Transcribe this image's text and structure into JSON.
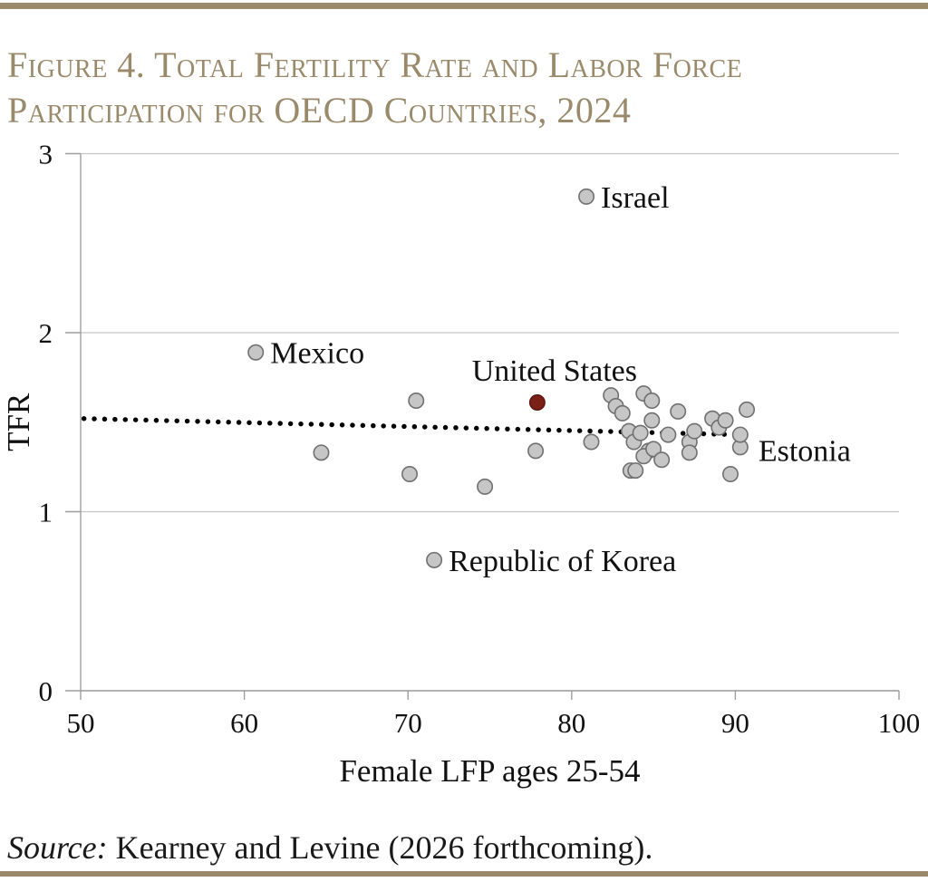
{
  "page": {
    "accent_color": "#9a8a6b",
    "title_line1": "Figure 4. Total Fertility Rate and Labor Force",
    "title_line2": "Participation for OECD Countries, 2024",
    "source_label": "Source:",
    "source_rest": " Kearney and Levine (2026 forthcoming)."
  },
  "chart_data": {
    "type": "scatter",
    "title": "Figure 4. Total Fertility Rate and Labor Force Participation for OECD Countries, 2024",
    "xlabel": "Female LFP ages 25-54",
    "ylabel": "TFR",
    "xlim": [
      50,
      100
    ],
    "ylim": [
      0,
      3
    ],
    "xticks": [
      50,
      60,
      70,
      80,
      90,
      100
    ],
    "yticks": [
      0,
      1,
      2,
      3
    ],
    "grid": "horizontal gridlines at integer TFR values",
    "legend": "none",
    "colors": {
      "marker_fill": "#c6c6c6",
      "marker_stroke": "#707070",
      "highlight_fill": "#7b2017",
      "highlight_stroke": "#5f170f",
      "grid_color": "#c4c4c4",
      "axis_color": "#9e9e9e",
      "text_color": "#111111",
      "trend_color": "#000000"
    },
    "trend_line": {
      "style": "dotted",
      "points": [
        [
          50.2,
          1.52
        ],
        [
          90.3,
          1.43
        ]
      ]
    },
    "labeled_points": [
      {
        "label": "Israel",
        "x": 80.9,
        "y": 2.76,
        "label_side": "right",
        "highlight": false
      },
      {
        "label": "Mexico",
        "x": 60.7,
        "y": 1.89,
        "label_side": "right",
        "highlight": false
      },
      {
        "label": "United States",
        "x": 77.9,
        "y": 1.61,
        "label_side": "above",
        "highlight": true
      },
      {
        "label": "Republic of Korea",
        "x": 71.6,
        "y": 0.73,
        "label_side": "right",
        "highlight": false
      },
      {
        "label": "Estonia",
        "x": 90.3,
        "y": 1.43,
        "label_side": "right-down",
        "highlight": false
      }
    ],
    "unlabeled_points": [
      [
        64.7,
        1.33
      ],
      [
        70.5,
        1.62
      ],
      [
        70.1,
        1.21
      ],
      [
        74.7,
        1.14
      ],
      [
        77.8,
        1.34
      ],
      [
        81.2,
        1.39
      ],
      [
        82.4,
        1.65
      ],
      [
        82.7,
        1.59
      ],
      [
        83.1,
        1.55
      ],
      [
        84.4,
        1.66
      ],
      [
        84.9,
        1.62
      ],
      [
        84.9,
        1.51
      ],
      [
        86.5,
        1.56
      ],
      [
        83.5,
        1.45
      ],
      [
        83.8,
        1.39
      ],
      [
        84.2,
        1.44
      ],
      [
        84.7,
        1.34
      ],
      [
        84.4,
        1.31
      ],
      [
        85.0,
        1.35
      ],
      [
        85.5,
        1.29
      ],
      [
        85.9,
        1.43
      ],
      [
        83.6,
        1.23
      ],
      [
        83.9,
        1.23
      ],
      [
        87.2,
        1.39
      ],
      [
        87.2,
        1.33
      ],
      [
        87.5,
        1.45
      ],
      [
        88.6,
        1.52
      ],
      [
        89.0,
        1.47
      ],
      [
        89.4,
        1.51
      ],
      [
        90.7,
        1.57
      ],
      [
        90.3,
        1.36
      ],
      [
        89.7,
        1.21
      ]
    ]
  }
}
